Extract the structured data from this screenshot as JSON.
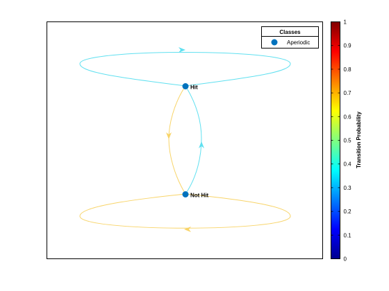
{
  "legend": {
    "title": "Classes",
    "entries": [
      {
        "label": "Aperiodic",
        "color": "#0072BD"
      }
    ]
  },
  "nodes": [
    {
      "id": "hit",
      "label": "Hit",
      "color": "#0072BD"
    },
    {
      "id": "not_hit",
      "label": "Not Hit",
      "color": "#0072BD"
    }
  ],
  "edges": [
    {
      "from": "hit",
      "to": "hit",
      "probability": 0.38
    },
    {
      "from": "hit",
      "to": "not_hit",
      "probability": 0.62
    },
    {
      "from": "not_hit",
      "to": "hit",
      "probability": 0.38
    },
    {
      "from": "not_hit",
      "to": "not_hit",
      "probability": 0.62
    }
  ],
  "colorbar": {
    "label": "Transition Probability",
    "ticks": [
      "0",
      "0.1",
      "0.2",
      "0.3",
      "0.4",
      "0.5",
      "0.6",
      "0.7",
      "0.8",
      "0.9",
      "1"
    ],
    "min": 0,
    "max": 1,
    "colormap": "jet"
  },
  "colors": {
    "edge_low": "#5fe0f0",
    "edge_high": "#f8d468"
  }
}
